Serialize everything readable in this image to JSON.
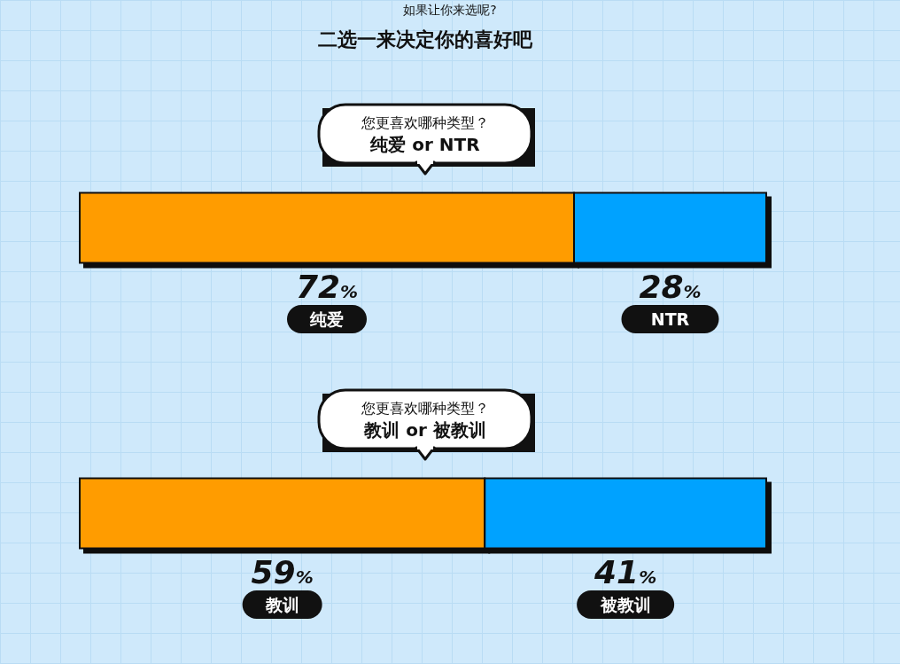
{
  "chart_data": [
    {
      "type": "other",
      "subtitle": "如果让你来选呢?",
      "title": "二选一来决定你的喜好吧"
    },
    {
      "type": "bar",
      "orientation": "horizontal",
      "stacked": true,
      "title": "您更喜欢哪种类型？",
      "subtitle": "纯爱 or NTR",
      "categories": [
        null
      ],
      "series": [
        {
          "name": "纯爱",
          "color": "#ff9c00",
          "values": [
            72
          ],
          "value_labels": [
            "72%"
          ]
        },
        {
          "name": "NTR",
          "color": "#00a2ff",
          "values": [
            28
          ],
          "value_labels": [
            "28%"
          ]
        }
      ]
    },
    {
      "type": "bar",
      "orientation": "horizontal",
      "stacked": true,
      "title": "您更喜欢哪种类型？",
      "subtitle": "教训 or 被教训",
      "categories": [
        null
      ],
      "series": [
        {
          "name": "教训",
          "color": "#ff9c00",
          "values": [
            59
          ],
          "value_labels": [
            "59%"
          ]
        },
        {
          "name": "被教训",
          "color": "#00a2ff",
          "values": [
            41
          ],
          "value_labels": [
            "41%"
          ]
        }
      ]
    }
  ]
}
